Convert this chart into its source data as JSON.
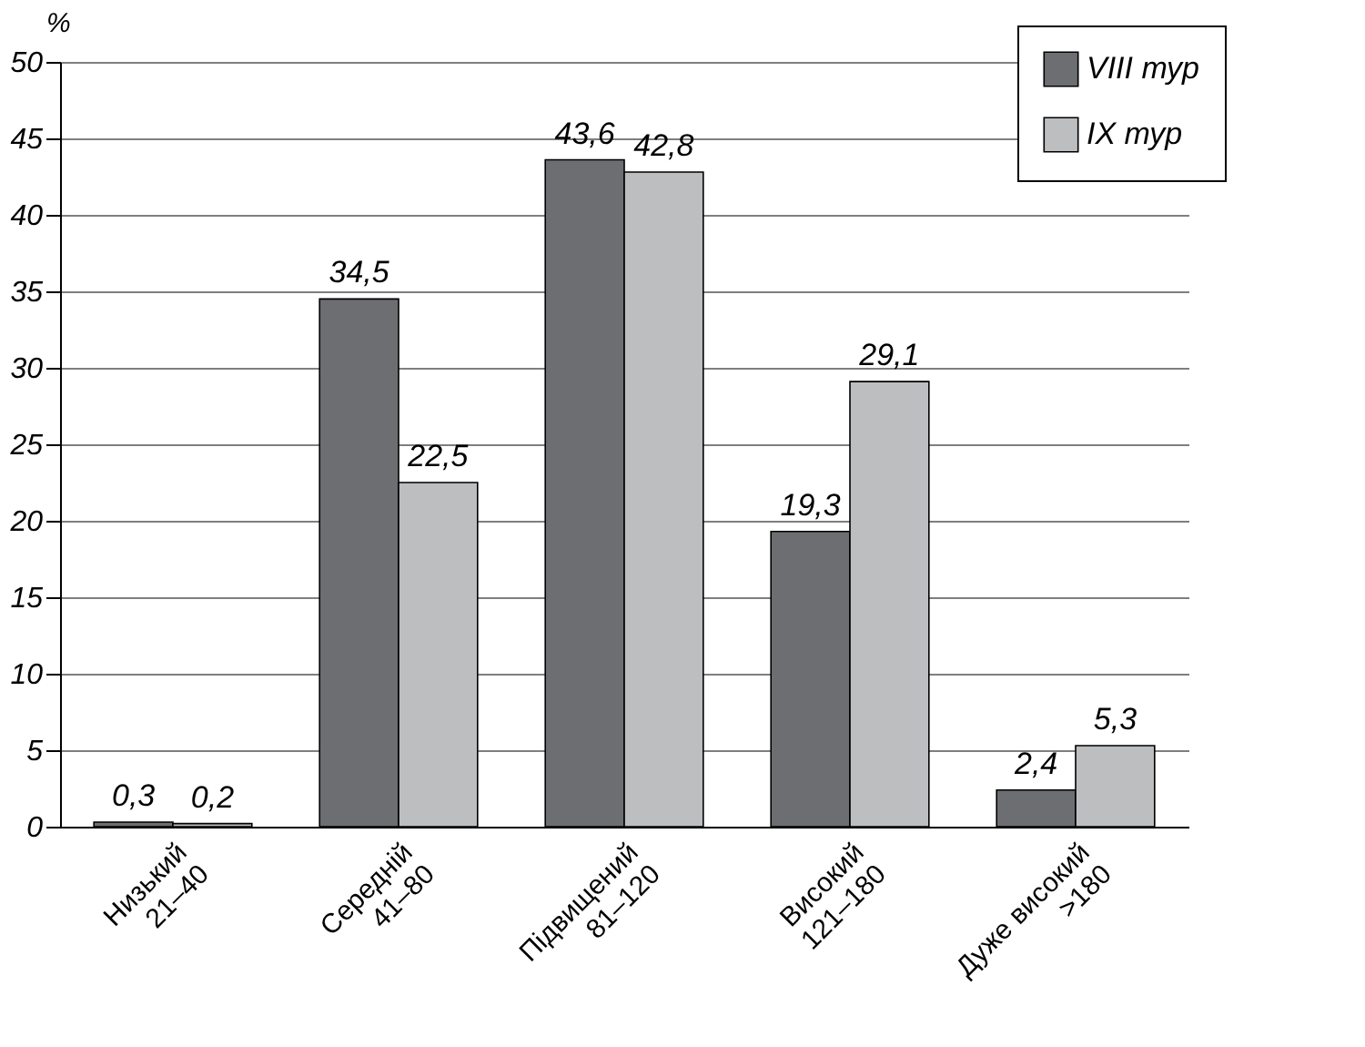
{
  "chart_data": {
    "type": "bar",
    "ylabel": "%",
    "categories": [
      "Низький\n21–40",
      "Середній\n41–80",
      "Підвищений\n81–120",
      "Високий\n121–180",
      "Дуже високий\n>180"
    ],
    "series": [
      {
        "name": "VIII тур",
        "color": "#6d6e71",
        "values": [
          0.3,
          34.5,
          43.6,
          19.3,
          2.4
        ],
        "value_labels": [
          "0,3",
          "34,5",
          "43,6",
          "19,3",
          "2,4"
        ]
      },
      {
        "name": "IX тур",
        "color": "#bcbec0",
        "values": [
          0.2,
          22.5,
          42.8,
          29.1,
          5.3
        ],
        "value_labels": [
          "0,2",
          "22,5",
          "42,8",
          "29,1",
          "5,3"
        ]
      }
    ],
    "ylim": [
      0,
      50
    ],
    "yticks": [
      0,
      5,
      10,
      15,
      20,
      25,
      30,
      35,
      40,
      45,
      50
    ],
    "grid": "y",
    "legend": "top right"
  }
}
